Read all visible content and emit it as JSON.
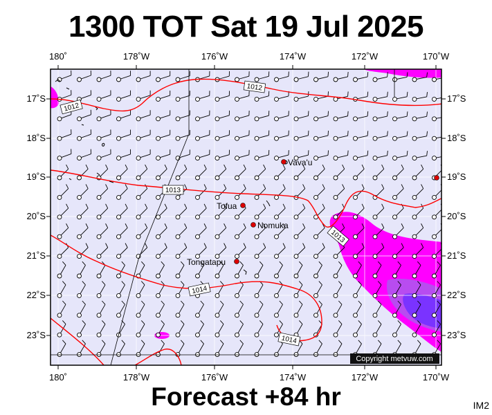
{
  "title": "1300 TOT Sat 19 Jul 2025",
  "footer": "Forecast +84 hr",
  "product_code": "IM2",
  "copyright": "Copyright metvuw.com",
  "axes": {
    "lon_labels": [
      "180˚",
      "178˚W",
      "176˚W",
      "174˚W",
      "172˚W",
      "170˚W"
    ],
    "lat_labels": [
      "17˚S",
      "18˚S",
      "19˚S",
      "20˚S",
      "21˚S",
      "22˚S",
      "23˚S"
    ]
  },
  "places": [
    {
      "name": "Vava'u"
    },
    {
      "name": "Tofua"
    },
    {
      "name": "Nomuka"
    },
    {
      "name": "Tongatapu"
    }
  ],
  "isobars": [
    {
      "label": "1012"
    },
    {
      "label": "1012"
    },
    {
      "label": "1013"
    },
    {
      "label": "1013"
    },
    {
      "label": "1014"
    },
    {
      "label": "1014"
    }
  ],
  "colors": {
    "background": "#e6e6fa",
    "rain_light": "#ff00ff",
    "rain_medium": "#b84cf0",
    "rain_heavy": "#7a33ff",
    "isobar": "#ff0000",
    "place": "#dd0000"
  }
}
